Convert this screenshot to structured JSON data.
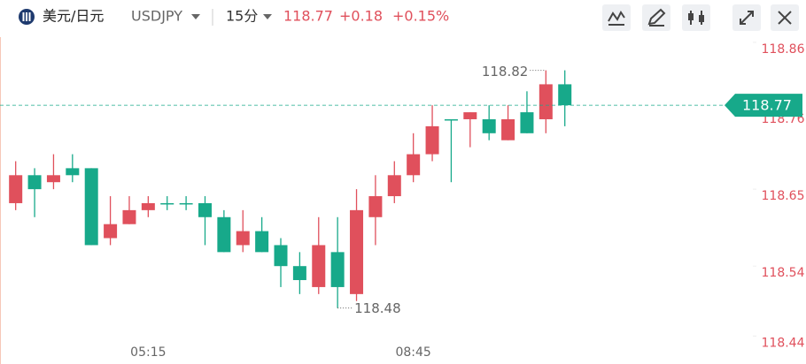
{
  "header": {
    "name": "美元/日元",
    "symbol": "USDJPY",
    "interval": "15分",
    "price": "118.77",
    "change": "+0.18",
    "change_pct": "+0.15%"
  },
  "chart_data": {
    "type": "candlestick",
    "categories": [
      null,
      null,
      null,
      null,
      null,
      null,
      null,
      "05:15",
      null,
      null,
      null,
      null,
      null,
      null,
      null,
      null,
      null,
      null,
      null,
      null,
      null,
      "08:45",
      null,
      null,
      null,
      null,
      null,
      null,
      null,
      null
    ],
    "open": [
      118.63,
      118.67,
      118.66,
      118.68,
      118.68,
      118.58,
      118.6,
      118.62,
      118.63,
      118.63,
      118.63,
      118.61,
      118.57,
      118.59,
      118.57,
      118.54,
      118.51,
      118.56,
      118.5,
      118.61,
      118.64,
      118.67,
      118.7,
      118.75,
      118.75,
      118.75,
      118.72,
      118.76,
      118.75,
      118.8
    ],
    "high": [
      118.69,
      118.68,
      118.7,
      118.7,
      118.68,
      118.64,
      118.64,
      118.64,
      118.64,
      118.64,
      118.64,
      118.62,
      118.62,
      118.61,
      118.58,
      118.56,
      118.61,
      118.61,
      118.65,
      118.67,
      118.69,
      118.73,
      118.77,
      118.75,
      118.76,
      118.77,
      118.77,
      118.79,
      118.82,
      118.82
    ],
    "low": [
      118.62,
      118.61,
      118.65,
      118.66,
      118.57,
      118.57,
      118.6,
      118.61,
      118.62,
      118.62,
      118.57,
      118.56,
      118.56,
      118.56,
      118.51,
      118.5,
      118.5,
      118.48,
      118.49,
      118.57,
      118.63,
      118.66,
      118.69,
      118.66,
      118.71,
      118.72,
      118.72,
      118.73,
      118.73,
      118.74
    ],
    "close": [
      118.67,
      118.65,
      118.67,
      118.67,
      118.57,
      118.6,
      118.62,
      118.63,
      118.63,
      118.63,
      118.61,
      118.56,
      118.59,
      118.56,
      118.54,
      118.52,
      118.57,
      118.51,
      118.62,
      118.64,
      118.67,
      118.7,
      118.74,
      118.75,
      118.76,
      118.73,
      118.75,
      118.73,
      118.8,
      118.77
    ],
    "up_color": "#e0505c",
    "down_color": "#17a98a",
    "ylim": [
      118.4,
      118.87
    ],
    "yticks": [
      118.86,
      118.76,
      118.65,
      118.54,
      118.44
    ],
    "current_price": 118.77,
    "high_label": 118.82,
    "low_label": 118.48
  }
}
